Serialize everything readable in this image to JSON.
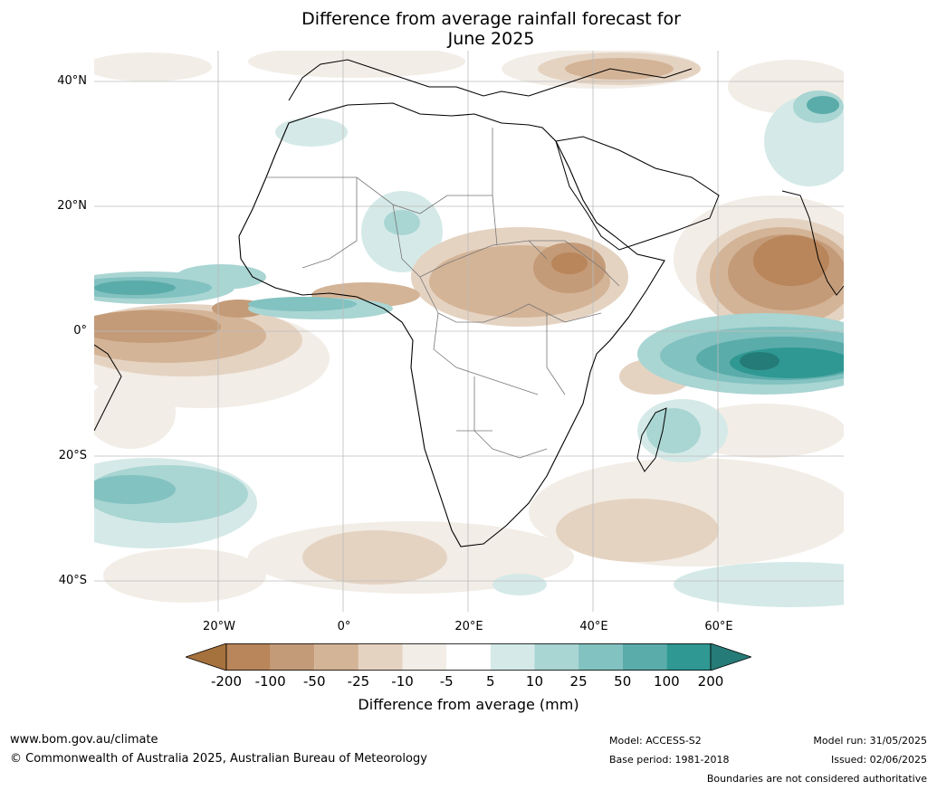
{
  "title_line1": "Difference from average rainfall forecast for",
  "title_line2": "June 2025",
  "lat_labels": [
    "40°N",
    "20°N",
    "0°",
    "20°S",
    "40°S"
  ],
  "lon_labels": [
    "20°W",
    "0°",
    "20°E",
    "40°E",
    "60°E"
  ],
  "colorbar": {
    "labels": [
      "-200",
      "-100",
      "-50",
      "-25",
      "-10",
      "-5",
      "5",
      "10",
      "25",
      "50",
      "100",
      "200"
    ],
    "colors": [
      "#a5713c",
      "#b9855a",
      "#c49b78",
      "#d4b497",
      "#e5d3c2",
      "#f2ede6",
      "#ffffff",
      "#d5eae8",
      "#a9d5d3",
      "#82c2c0",
      "#5aacaa",
      "#2f9893",
      "#257b77"
    ],
    "title": "Difference from average (mm)"
  },
  "footer": {
    "website": "www.bom.gov.au/climate",
    "copyright": "© Commonwealth of Australia 2025, Australian Bureau of Meteorology",
    "model": "Model: ACCESS-S2",
    "base_period": "Base period: 1981-2018",
    "model_run": "Model run: 31/05/2025",
    "issued": "Issued: 02/06/2025",
    "disclaimer": "Boundaries are not considered authoritative"
  }
}
